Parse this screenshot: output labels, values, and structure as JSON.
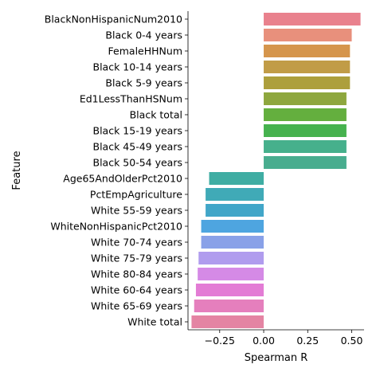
{
  "chart_data": {
    "type": "bar",
    "orientation": "horizontal",
    "xlabel": "Spearman R",
    "ylabel": "Feature",
    "xlim": [
      -0.43,
      0.57
    ],
    "xticks": [
      -0.25,
      0.0,
      0.25,
      0.5
    ],
    "xtick_labels": [
      "−0.25",
      "0.00",
      "0.25",
      "0.50"
    ],
    "grid": false,
    "categories": [
      "BlackNonHispanicNum2010",
      "Black 0-4 years",
      "FemaleHHNum",
      "Black 10-14 years",
      "Black 5-9 years",
      "Ed1LessThanHSNum",
      "Black total",
      "Black 15-19 years",
      "Black 45-49 years",
      "Black 50-54 years",
      "Age65AndOlderPct2010",
      "PctEmpAgriculture",
      "White 55-59 years",
      "WhiteNonHispanicPct2010",
      "White 70-74 years",
      "White 75-79 years",
      "White 80-84 years",
      "White 60-64 years",
      "White 65-69 years",
      "White total"
    ],
    "values": [
      0.55,
      0.5,
      0.49,
      0.49,
      0.49,
      0.47,
      0.47,
      0.47,
      0.47,
      0.47,
      -0.31,
      -0.33,
      -0.33,
      -0.355,
      -0.355,
      -0.37,
      -0.375,
      -0.385,
      -0.395,
      -0.41
    ],
    "colors": [
      "#e9818d",
      "#e8907c",
      "#d5954c",
      "#c19c47",
      "#ad9f3c",
      "#8ea73e",
      "#64af3e",
      "#46b24e",
      "#46b08c",
      "#49ad8f",
      "#3fada3",
      "#40aab7",
      "#41a6c8",
      "#4ea5e0",
      "#89a1e8",
      "#b09cee",
      "#d58ae6",
      "#e37cd5",
      "#e57fbd",
      "#e484a3"
    ]
  }
}
